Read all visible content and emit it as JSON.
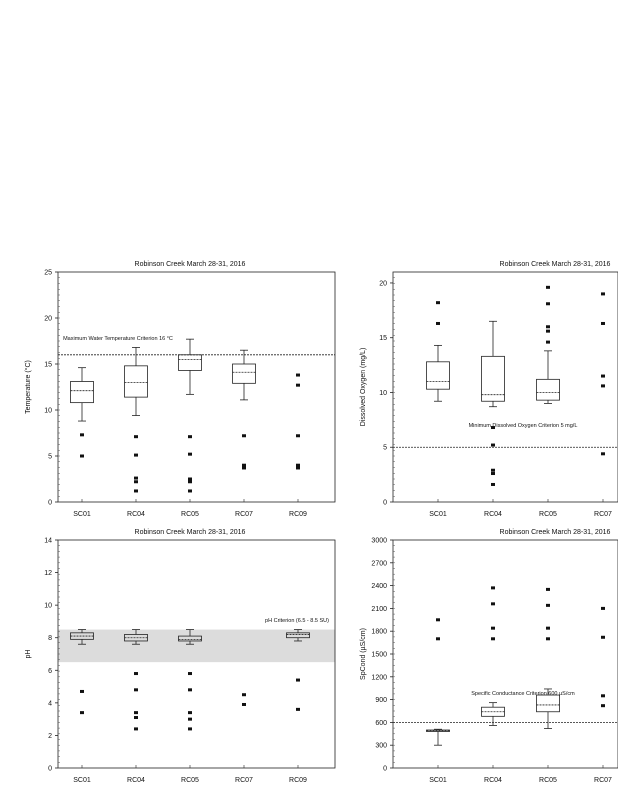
{
  "chart_data": [
    {
      "type": "box",
      "title": "Robinson Creek March 28-31, 2016",
      "ylabel": "Temperature (°C)",
      "ylim": [
        0,
        25
      ],
      "yticks": [
        0,
        5,
        10,
        15,
        20,
        25
      ],
      "categories": [
        "SC01",
        "RC04",
        "RC05",
        "RC07",
        "RC09"
      ],
      "threshold": 16,
      "legend_note": "Maximum Water Temperature Criterion 16 °C",
      "boxes": [
        {
          "q1": 10.8,
          "median": 12.1,
          "q3": 13.1,
          "whisker_low": 8.8,
          "whisker_high": 14.6,
          "outliers": [
            7.3,
            5.0
          ]
        },
        {
          "q1": 11.4,
          "median": 13.0,
          "q3": 14.8,
          "whisker_low": 9.4,
          "whisker_high": 16.8,
          "outliers": [
            7.1,
            5.1,
            2.6,
            2.2,
            1.2
          ]
        },
        {
          "q1": 14.3,
          "median": 15.5,
          "q3": 16.0,
          "whisker_low": 11.7,
          "whisker_high": 17.7,
          "outliers": [
            7.1,
            5.2,
            2.5,
            2.2,
            1.2
          ]
        },
        {
          "q1": 12.9,
          "median": 14.1,
          "q3": 15.0,
          "whisker_low": 11.1,
          "whisker_high": 16.5,
          "outliers": [
            7.2,
            4.0,
            3.7
          ]
        },
        {
          "q1": null,
          "median": null,
          "q3": null,
          "whisker_low": null,
          "whisker_high": null,
          "outliers": [
            13.8,
            12.7,
            7.2,
            4.0,
            3.7
          ]
        }
      ]
    },
    {
      "type": "box",
      "title": "Robinson Creek March 28-31, 2016",
      "ylabel": "Dissolved Oxygen (mg/L)",
      "ylim": [
        0,
        21
      ],
      "yticks": [
        0,
        5,
        10,
        15,
        20
      ],
      "categories": [
        "SC01",
        "RC04",
        "RC05",
        "RC07"
      ],
      "threshold": 5,
      "legend_note": "Minimum Dissolved Oxygen Criterion 5 mg/L",
      "boxes": [
        {
          "q1": 10.3,
          "median": 11.0,
          "q3": 12.8,
          "whisker_low": 9.2,
          "whisker_high": 14.3,
          "outliers": [
            18.2,
            16.3
          ]
        },
        {
          "q1": 9.2,
          "median": 9.8,
          "q3": 13.3,
          "whisker_low": 8.7,
          "whisker_high": 16.5,
          "outliers": [
            6.8,
            5.2,
            2.9,
            2.6,
            1.6
          ]
        },
        {
          "q1": 9.3,
          "median": 10.0,
          "q3": 11.2,
          "whisker_low": 9.0,
          "whisker_high": 13.8,
          "outliers": [
            19.6,
            18.1,
            16.0,
            15.6,
            14.6
          ]
        },
        {
          "q1": null,
          "median": null,
          "q3": null,
          "whisker_low": null,
          "whisker_high": null,
          "outliers": [
            19.0,
            16.3,
            11.5,
            10.6,
            4.4
          ]
        }
      ]
    },
    {
      "type": "box",
      "title": "Robinson Creek March 28-31, 2016",
      "ylabel": "pH",
      "ylim": [
        0,
        14
      ],
      "yticks": [
        0,
        2,
        4,
        6,
        8,
        10,
        12,
        14
      ],
      "categories": [
        "SC01",
        "RC04",
        "RC05",
        "RC07",
        "RC09"
      ],
      "band": [
        6.5,
        8.5
      ],
      "legend_note": "pH Criterion (6.5 - 8.5 SU)",
      "boxes": [
        {
          "q1": 7.9,
          "median": 8.1,
          "q3": 8.3,
          "whisker_low": 7.6,
          "whisker_high": 8.5,
          "outliers": [
            4.7,
            3.4
          ]
        },
        {
          "q1": 7.8,
          "median": 8.0,
          "q3": 8.2,
          "whisker_low": 7.6,
          "whisker_high": 8.5,
          "outliers": [
            5.8,
            4.8,
            3.4,
            3.1,
            2.4
          ]
        },
        {
          "q1": 7.8,
          "median": 7.9,
          "q3": 8.1,
          "whisker_low": 7.6,
          "whisker_high": 8.5,
          "outliers": [
            5.8,
            4.8,
            3.4,
            3.0,
            2.4
          ]
        },
        {
          "q1": null,
          "median": null,
          "q3": null,
          "whisker_low": null,
          "whisker_high": null,
          "outliers": [
            4.5,
            3.9
          ]
        },
        {
          "q1": 8.0,
          "median": 8.2,
          "q3": 8.3,
          "whisker_low": 7.8,
          "whisker_high": 8.5,
          "outliers": [
            5.4,
            3.6
          ]
        }
      ]
    },
    {
      "type": "box",
      "title": "Robinson Creek March 28-31, 2016",
      "ylabel": "SpCond (µS/cm)",
      "ylim": [
        0,
        3000
      ],
      "yticks": [
        0,
        300,
        600,
        900,
        1200,
        1500,
        1800,
        2100,
        2400,
        2700,
        3000
      ],
      "categories": [
        "SC01",
        "RC04",
        "RC05",
        "RC07"
      ],
      "threshold": 600,
      "legend_note": "Specific Conductance Criterion 600 µS/cm",
      "boxes": [
        {
          "q1": 480,
          "median": 490,
          "q3": 500,
          "whisker_low": 300,
          "whisker_high": 510,
          "outliers": [
            1950,
            1700
          ]
        },
        {
          "q1": 680,
          "median": 740,
          "q3": 800,
          "whisker_low": 560,
          "whisker_high": 860,
          "outliers": [
            2370,
            2160,
            1840,
            1700
          ]
        },
        {
          "q1": 740,
          "median": 830,
          "q3": 960,
          "whisker_low": 520,
          "whisker_high": 1040,
          "outliers": [
            2350,
            2140,
            1840,
            1700
          ]
        },
        {
          "q1": null,
          "median": null,
          "q3": null,
          "whisker_low": null,
          "whisker_high": null,
          "outliers": [
            2100,
            1720,
            950,
            820
          ]
        }
      ]
    }
  ]
}
